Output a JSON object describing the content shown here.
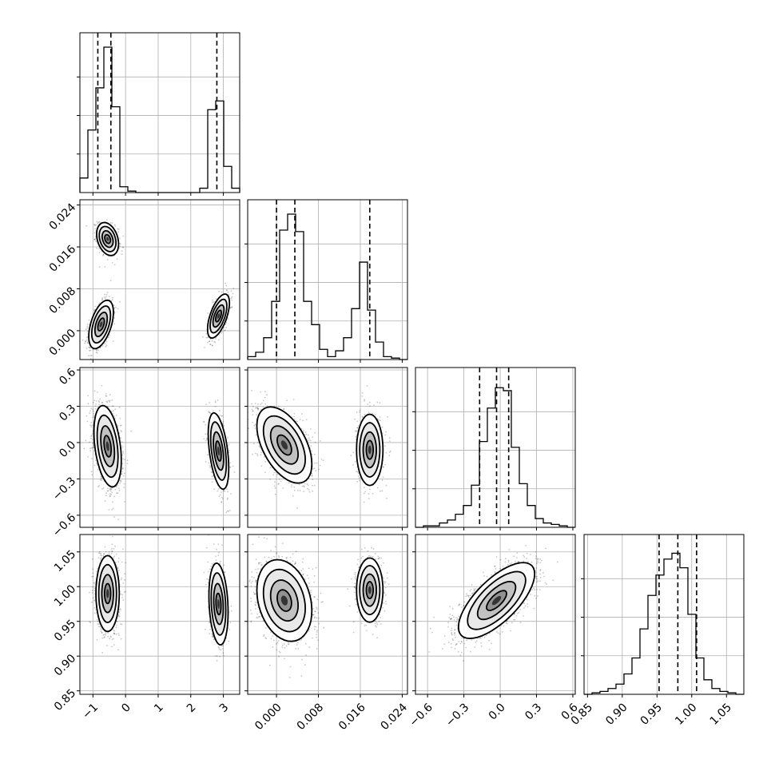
{
  "chart_data": {
    "type": "corner",
    "grid": true,
    "parameters": [
      {
        "id": "p0",
        "range": [
          -1.4,
          3.5
        ],
        "ticks": [
          -1,
          0,
          1,
          2,
          3
        ],
        "tick_labels": [
          "−1",
          "0",
          "1",
          "2",
          "3"
        ],
        "quantiles": [
          -0.85,
          -0.45,
          2.8
        ],
        "modes": [
          {
            "mean": -0.55,
            "sd": 0.18,
            "weight": 0.65
          },
          {
            "mean": 2.9,
            "sd": 0.17,
            "weight": 0.35
          }
        ],
        "hist_counts": [
          0.1,
          0.43,
          0.72,
          1.0,
          0.59,
          0.04,
          0.01,
          0,
          0,
          0,
          0,
          0,
          0,
          0,
          0,
          0.03,
          0.57,
          0.63,
          0.18,
          0.03
        ]
      },
      {
        "id": "p1",
        "range": [
          -0.0055,
          0.025
        ],
        "ticks": [
          0.0,
          0.008,
          0.016,
          0.024
        ],
        "tick_labels": [
          "0.000",
          "0.008",
          "0.016",
          "0.024"
        ],
        "quantiles": [
          0.0,
          0.0035,
          0.0178
        ],
        "hist_counts": [
          0.02,
          0.05,
          0.15,
          0.4,
          0.89,
          1.0,
          0.88,
          0.4,
          0.24,
          0.07,
          0.02,
          0.06,
          0.15,
          0.35,
          0.67,
          0.34,
          0.12,
          0.02,
          0.01,
          0.0
        ]
      },
      {
        "id": "p2",
        "range": [
          -0.7,
          0.62
        ],
        "ticks": [
          -0.6,
          -0.3,
          0.0,
          0.3,
          0.6
        ],
        "tick_labels": [
          "−0.6",
          "−0.3",
          "0.0",
          "0.3",
          "0.6"
        ],
        "quantiles": [
          -0.17,
          -0.03,
          0.07
        ],
        "hist_counts": [
          0.0,
          0.01,
          0.01,
          0.03,
          0.05,
          0.09,
          0.15,
          0.29,
          0.59,
          0.82,
          0.96,
          0.94,
          0.55,
          0.3,
          0.15,
          0.06,
          0.03,
          0.02,
          0.01,
          0.0
        ]
      },
      {
        "id": "p3",
        "range": [
          0.845,
          1.075
        ],
        "ticks": [
          0.85,
          0.9,
          0.95,
          1.0,
          1.05
        ],
        "tick_labels": [
          "0.85",
          "0.90",
          "0.95",
          "1.00",
          "1.05"
        ],
        "quantiles": [
          0.953,
          0.98,
          1.007
        ],
        "hist_counts": [
          0.0,
          0.01,
          0.02,
          0.04,
          0.07,
          0.14,
          0.25,
          0.45,
          0.68,
          0.82,
          0.93,
          0.97,
          0.87,
          0.55,
          0.25,
          0.1,
          0.04,
          0.02,
          0.01,
          0.0
        ]
      }
    ],
    "pairs": [
      {
        "row": 1,
        "col": 0,
        "clusters": [
          {
            "x": -0.55,
            "y": 0.0175,
            "sx": 0.16,
            "sy": 0.0015,
            "rho": -0.3,
            "n": 700
          },
          {
            "x": -0.75,
            "y": 0.0012,
            "sx": 0.18,
            "sy": 0.0022,
            "rho": 0.5,
            "n": 850
          },
          {
            "x": 2.85,
            "y": 0.0028,
            "sx": 0.16,
            "sy": 0.002,
            "rho": 0.6,
            "n": 750
          }
        ]
      },
      {
        "row": 2,
        "col": 0,
        "clusters": [
          {
            "x": -0.55,
            "y": -0.03,
            "sx": 0.2,
            "sy": 0.16,
            "rho": -0.35,
            "n": 1500
          },
          {
            "x": 2.85,
            "y": -0.07,
            "sx": 0.15,
            "sy": 0.15,
            "rho": -0.45,
            "n": 750
          }
        ]
      },
      {
        "row": 2,
        "col": 1,
        "clusters": [
          {
            "x": 0.0015,
            "y": -0.02,
            "sx": 0.0025,
            "sy": 0.15,
            "rho": -0.5,
            "n": 1500
          },
          {
            "x": 0.0178,
            "y": -0.06,
            "sx": 0.0012,
            "sy": 0.14,
            "rho": 0.0,
            "n": 750
          }
        ]
      },
      {
        "row": 3,
        "col": 0,
        "clusters": [
          {
            "x": -0.55,
            "y": 0.99,
            "sx": 0.17,
            "sy": 0.026,
            "rho": 0.0,
            "n": 1500
          },
          {
            "x": 2.85,
            "y": 0.975,
            "sx": 0.14,
            "sy": 0.028,
            "rho": -0.2,
            "n": 750
          }
        ]
      },
      {
        "row": 3,
        "col": 1,
        "clusters": [
          {
            "x": 0.0015,
            "y": 0.98,
            "sx": 0.0025,
            "sy": 0.028,
            "rho": -0.25,
            "n": 1500
          },
          {
            "x": 0.0178,
            "y": 0.995,
            "sx": 0.0012,
            "sy": 0.022,
            "rho": 0.0,
            "n": 750
          }
        ]
      },
      {
        "row": 3,
        "col": 2,
        "clusters": [
          {
            "x": -0.03,
            "y": 0.98,
            "sx": 0.15,
            "sy": 0.026,
            "rho": 0.7,
            "n": 2300
          }
        ]
      }
    ]
  }
}
